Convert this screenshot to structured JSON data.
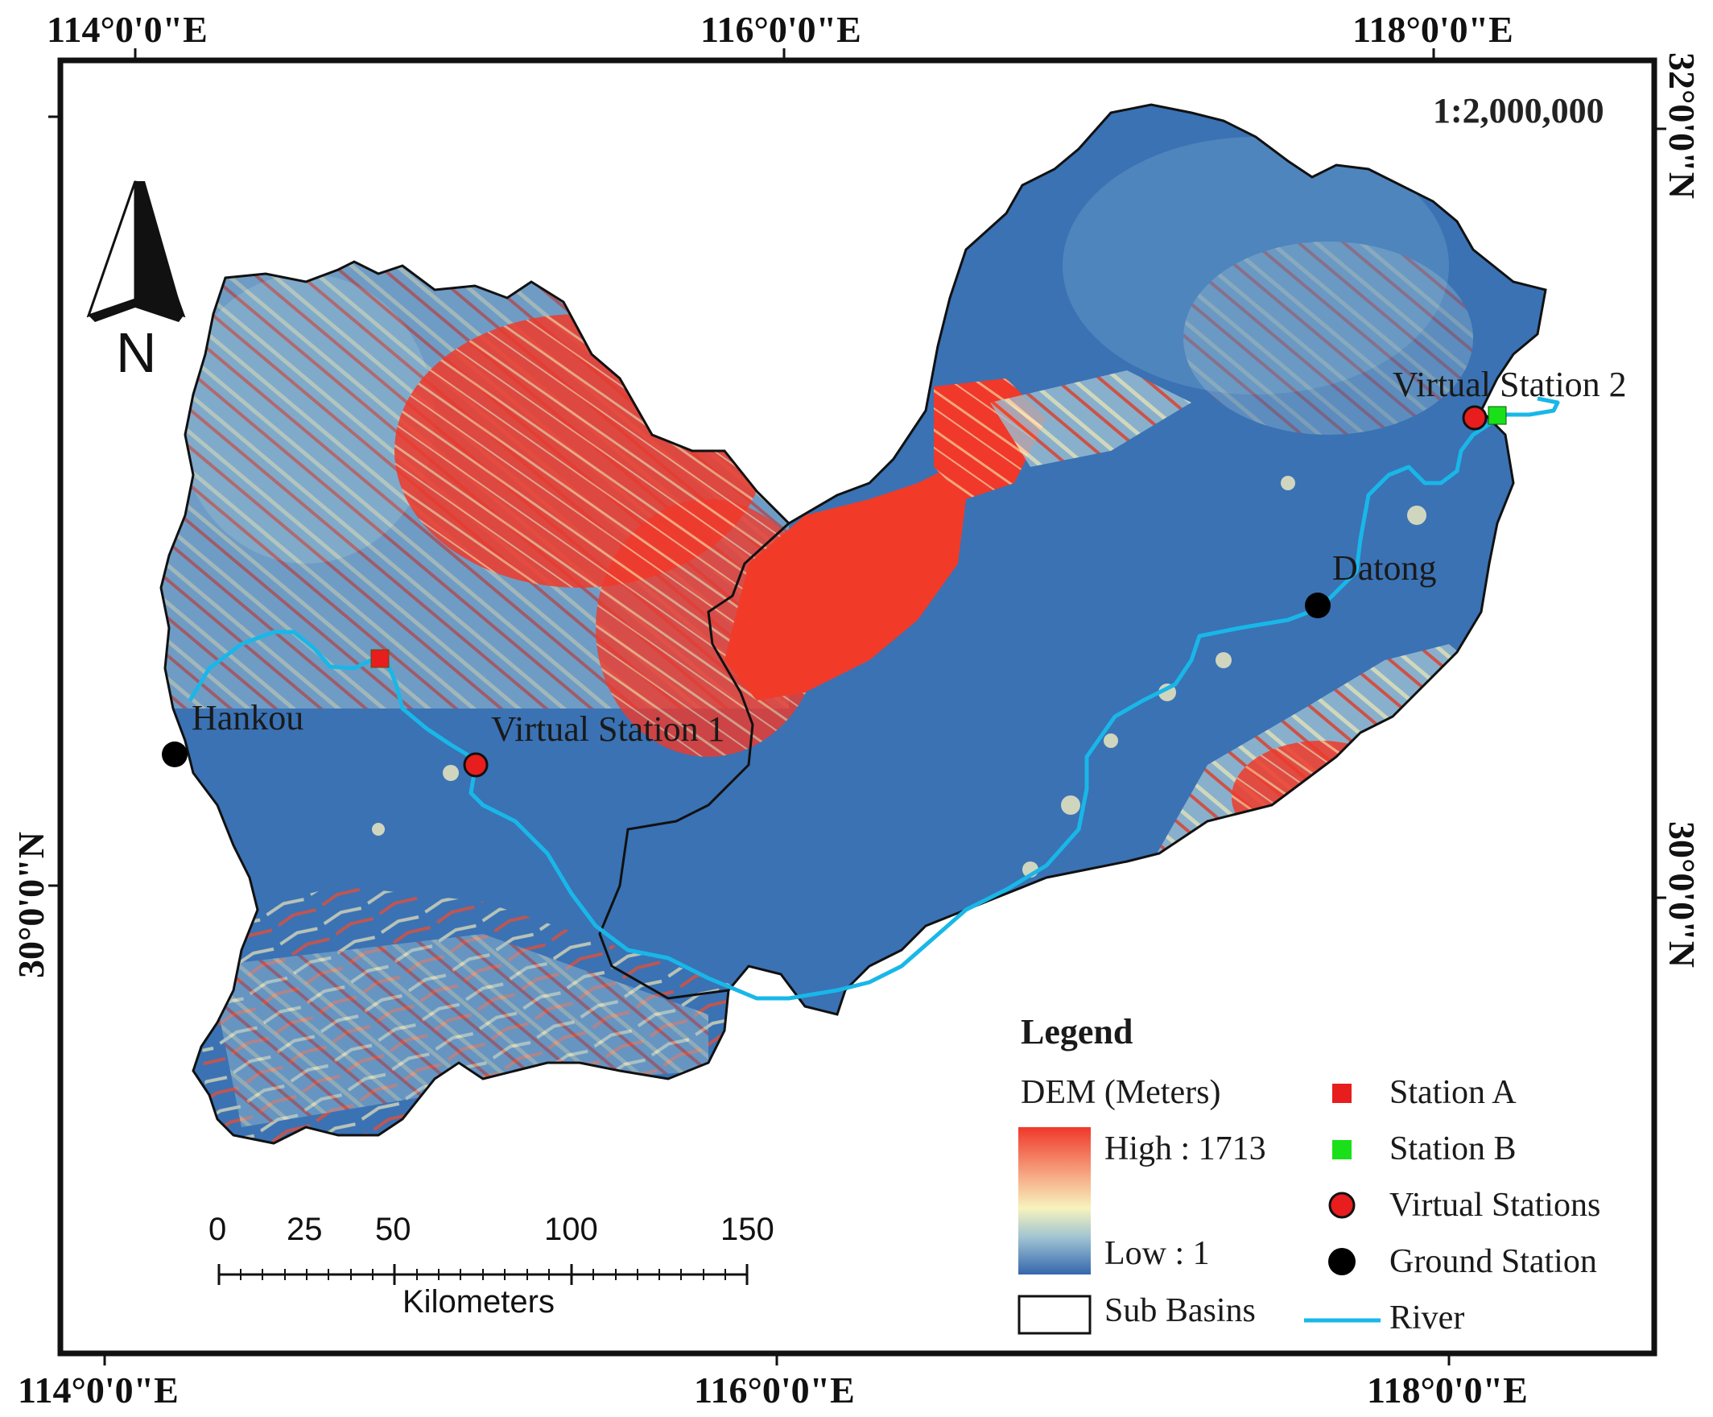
{
  "map": {
    "scale_ratio": "1:2,000,000",
    "north_arrow_label": "N",
    "grid": {
      "top_labels": [
        "114°0'0\"E",
        "116°0'0\"E",
        "118°0'0\"E"
      ],
      "bottom_labels": [
        "114°0'0\"E",
        "116°0'0\"E",
        "118°0'0\"E"
      ],
      "left_labels": [
        "30°0'0\"N"
      ],
      "right_labels": [
        "32°0'0\"N",
        "30°0'0\"N"
      ]
    },
    "places": {
      "hankou": "Hankou",
      "virtual_station_1": "Virtual Station 1",
      "virtual_station_2": "Virtual Station 2",
      "datong": "Datong"
    },
    "colors": {
      "dem_low": "#3a72b4",
      "dem_mid": "#f6f0b0",
      "dem_high": "#f23a25",
      "river": "#19b7e8",
      "station_a": "#e81d1d",
      "station_b": "#19e019",
      "virtual_station": "#e81d1d",
      "ground_station": "#000000"
    }
  },
  "scale_bar": {
    "ticks": [
      "0",
      "25",
      "50",
      "100",
      "150"
    ],
    "unit": "Kilometers"
  },
  "legend": {
    "title": "Legend",
    "dem_title": "DEM (Meters)",
    "dem_high": "High : 1713",
    "dem_low": "Low : 1",
    "sub_basins": "Sub Basins",
    "station_a": "Station A",
    "station_b": "Station B",
    "virtual_stations": "Virtual Stations",
    "ground_station": "Ground Station",
    "river": "River"
  }
}
